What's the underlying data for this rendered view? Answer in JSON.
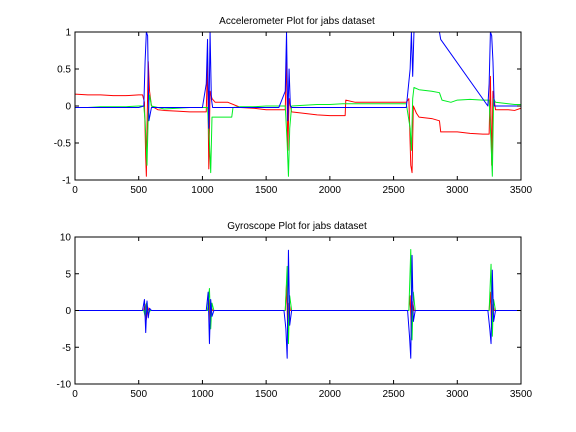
{
  "chart_data": [
    {
      "type": "line",
      "title": "Accelerometer Plot for jabs dataset",
      "xlabel": "",
      "ylabel": "",
      "xlim": [
        0,
        3500
      ],
      "ylim": [
        -1,
        1
      ],
      "xticks": [
        "0",
        "500",
        "1000",
        "1500",
        "2000",
        "2500",
        "3000",
        "3500"
      ],
      "yticks": [
        "1",
        "0.5",
        "0",
        "-0.5",
        "-1"
      ],
      "xtick_values": [
        0,
        500,
        1000,
        1500,
        2000,
        2500,
        3000,
        3500
      ],
      "ytick_values": [
        1,
        0.5,
        0,
        -0.5,
        -1
      ],
      "grid": false,
      "legend": "none",
      "series": [
        {
          "color": "#ff0000",
          "points": [
            [
              0,
              0.16
            ],
            [
              100,
              0.15
            ],
            [
              200,
              0.15
            ],
            [
              300,
              0.14
            ],
            [
              400,
              0.14
            ],
            [
              500,
              0.15
            ],
            [
              530,
              0.15
            ],
            [
              545,
              0.05
            ],
            [
              555,
              -0.7
            ],
            [
              560,
              -0.95
            ],
            [
              565,
              -0.3
            ],
            [
              575,
              0.6
            ],
            [
              585,
              0.2
            ],
            [
              600,
              0.0
            ],
            [
              650,
              -0.05
            ],
            [
              700,
              -0.06
            ],
            [
              800,
              -0.07
            ],
            [
              900,
              -0.08
            ],
            [
              1000,
              -0.08
            ],
            [
              1030,
              -0.08
            ],
            [
              1040,
              0.6
            ],
            [
              1050,
              -0.85
            ],
            [
              1060,
              0.2
            ],
            [
              1075,
              0.1
            ],
            [
              1100,
              0.05
            ],
            [
              1200,
              0.05
            ],
            [
              1300,
              -0.02
            ],
            [
              1400,
              -0.03
            ],
            [
              1500,
              -0.05
            ],
            [
              1600,
              -0.05
            ],
            [
              1650,
              -0.05
            ],
            [
              1660,
              0.7
            ],
            [
              1670,
              -0.6
            ],
            [
              1680,
              0.1
            ],
            [
              1700,
              -0.08
            ],
            [
              1800,
              -0.1
            ],
            [
              1900,
              -0.12
            ],
            [
              2000,
              -0.13
            ],
            [
              2100,
              -0.13
            ],
            [
              2120,
              -0.13
            ],
            [
              2125,
              0.08
            ],
            [
              2200,
              0.05
            ],
            [
              2300,
              0.05
            ],
            [
              2400,
              0.05
            ],
            [
              2500,
              0.05
            ],
            [
              2600,
              0.05
            ],
            [
              2620,
              0.1
            ],
            [
              2635,
              -0.8
            ],
            [
              2645,
              -0.9
            ],
            [
              2655,
              0.0
            ],
            [
              2680,
              -0.1
            ],
            [
              2700,
              -0.15
            ],
            [
              2800,
              -0.17
            ],
            [
              2860,
              -0.2
            ],
            [
              2870,
              -0.35
            ],
            [
              3000,
              -0.35
            ],
            [
              3100,
              -0.37
            ],
            [
              3200,
              -0.38
            ],
            [
              3250,
              -0.38
            ],
            [
              3260,
              0.4
            ],
            [
              3270,
              -0.8
            ],
            [
              3280,
              0.2
            ],
            [
              3300,
              -0.05
            ],
            [
              3400,
              -0.05
            ],
            [
              3450,
              -0.06
            ],
            [
              3500,
              -0.03
            ]
          ]
        },
        {
          "color": "#00ee22",
          "points": [
            [
              0,
              -0.02
            ],
            [
              100,
              -0.02
            ],
            [
              200,
              -0.01
            ],
            [
              300,
              -0.01
            ],
            [
              400,
              -0.01
            ],
            [
              500,
              0.0
            ],
            [
              540,
              0.0
            ],
            [
              550,
              -0.2
            ],
            [
              565,
              -0.8
            ],
            [
              575,
              -0.1
            ],
            [
              585,
              0.15
            ],
            [
              600,
              0.0
            ],
            [
              700,
              -0.04
            ],
            [
              800,
              -0.03
            ],
            [
              900,
              -0.02
            ],
            [
              1000,
              -0.02
            ],
            [
              1040,
              -0.02
            ],
            [
              1055,
              -0.5
            ],
            [
              1065,
              -0.9
            ],
            [
              1075,
              -0.15
            ],
            [
              1100,
              -0.15
            ],
            [
              1150,
              -0.15
            ],
            [
              1200,
              -0.15
            ],
            [
              1230,
              -0.15
            ],
            [
              1240,
              -0.02
            ],
            [
              1300,
              -0.01
            ],
            [
              1400,
              -0.01
            ],
            [
              1500,
              0.0
            ],
            [
              1600,
              0.0
            ],
            [
              1650,
              0.0
            ],
            [
              1665,
              -0.5
            ],
            [
              1675,
              -0.95
            ],
            [
              1685,
              -0.3
            ],
            [
              1700,
              0.0
            ],
            [
              1800,
              0.01
            ],
            [
              1900,
              0.02
            ],
            [
              2000,
              0.02
            ],
            [
              2100,
              0.03
            ],
            [
              2200,
              0.03
            ],
            [
              2300,
              0.03
            ],
            [
              2400,
              0.03
            ],
            [
              2500,
              0.03
            ],
            [
              2600,
              0.03
            ],
            [
              2630,
              -0.3
            ],
            [
              2640,
              -0.6
            ],
            [
              2650,
              0.1
            ],
            [
              2660,
              0.25
            ],
            [
              2700,
              0.22
            ],
            [
              2800,
              0.2
            ],
            [
              2860,
              0.18
            ],
            [
              2880,
              0.08
            ],
            [
              2950,
              0.05
            ],
            [
              3000,
              0.08
            ],
            [
              3100,
              0.09
            ],
            [
              3200,
              0.08
            ],
            [
              3250,
              0.08
            ],
            [
              3265,
              -0.5
            ],
            [
              3275,
              -0.95
            ],
            [
              3285,
              0.1
            ],
            [
              3300,
              0.05
            ],
            [
              3400,
              0.03
            ],
            [
              3450,
              0.02
            ],
            [
              3500,
              0.02
            ]
          ]
        },
        {
          "color": "#0000ff",
          "points": [
            [
              0,
              -0.02
            ],
            [
              500,
              -0.02
            ],
            [
              540,
              0.0
            ],
            [
              550,
              0.6
            ],
            [
              560,
              1.0
            ],
            [
              570,
              0.95
            ],
            [
              580,
              -0.2
            ],
            [
              600,
              -0.02
            ],
            [
              1000,
              -0.02
            ],
            [
              1030,
              0.3
            ],
            [
              1040,
              0.9
            ],
            [
              1050,
              -0.3
            ],
            [
              1060,
              1.0
            ],
            [
              1070,
              0.1
            ],
            [
              1080,
              -0.02
            ],
            [
              1600,
              -0.02
            ],
            [
              1650,
              0.2
            ],
            [
              1660,
              1.0
            ],
            [
              1670,
              -0.2
            ],
            [
              1680,
              0.5
            ],
            [
              1690,
              0.0
            ],
            [
              1700,
              -0.02
            ],
            [
              2600,
              -0.02
            ],
            [
              2630,
              0.5
            ],
            [
              2640,
              1.0
            ],
            [
              2650,
              0.4
            ],
            [
              2660,
              1.0
            ],
            [
              2700,
              1.0
            ],
            [
              2800,
              1.0
            ],
            [
              2860,
              1.0
            ],
            [
              2870,
              0.9
            ],
            [
              3240,
              0.0
            ],
            [
              3250,
              0.3
            ],
            [
              3260,
              1.0
            ],
            [
              3270,
              0.95
            ],
            [
              3280,
              0.6
            ],
            [
              3290,
              0.0
            ],
            [
              3300,
              0.0
            ],
            [
              3500,
              0.0
            ]
          ]
        }
      ]
    },
    {
      "type": "line",
      "title": "Gyroscope Plot for jabs dataset",
      "xlabel": "",
      "ylabel": "",
      "xlim": [
        0,
        3500
      ],
      "ylim": [
        -10,
        10
      ],
      "xticks": [
        "0",
        "500",
        "1000",
        "1500",
        "2000",
        "2500",
        "3000",
        "3500"
      ],
      "yticks": [
        "10",
        "5",
        "0",
        "-5",
        "-10"
      ],
      "xtick_values": [
        0,
        500,
        1000,
        1500,
        2000,
        2500,
        3000,
        3500
      ],
      "ytick_values": [
        10,
        5,
        0,
        -5,
        -10
      ],
      "grid": false,
      "legend": "none",
      "series": [
        {
          "color": "#ff0000",
          "points": [
            [
              0,
              0
            ],
            [
              540,
              0
            ],
            [
              550,
              0.8
            ],
            [
              560,
              -1.2
            ],
            [
              570,
              0.5
            ],
            [
              580,
              0
            ],
            [
              1040,
              0
            ],
            [
              1050,
              1.5
            ],
            [
              1060,
              -1.8
            ],
            [
              1070,
              0.4
            ],
            [
              1080,
              0
            ],
            [
              1650,
              0
            ],
            [
              1660,
              3.5
            ],
            [
              1670,
              -3.0
            ],
            [
              1680,
              1.0
            ],
            [
              1690,
              0
            ],
            [
              2620,
              0
            ],
            [
              2630,
              2.0
            ],
            [
              2640,
              -3.0
            ],
            [
              2650,
              1.2
            ],
            [
              2660,
              0
            ],
            [
              3250,
              0
            ],
            [
              3260,
              2.5
            ],
            [
              3270,
              -2.5
            ],
            [
              3280,
              0.8
            ],
            [
              3290,
              0
            ],
            [
              3500,
              0
            ]
          ]
        },
        {
          "color": "#00ee22",
          "points": [
            [
              0,
              0
            ],
            [
              540,
              0
            ],
            [
              550,
              -0.8
            ],
            [
              560,
              1.0
            ],
            [
              575,
              -0.5
            ],
            [
              590,
              0
            ],
            [
              1040,
              0
            ],
            [
              1055,
              3.0
            ],
            [
              1065,
              -2.5
            ],
            [
              1075,
              1.0
            ],
            [
              1090,
              0
            ],
            [
              1650,
              0
            ],
            [
              1665,
              6.0
            ],
            [
              1675,
              -4.5
            ],
            [
              1685,
              2.0
            ],
            [
              1700,
              0
            ],
            [
              2620,
              0
            ],
            [
              2635,
              8.3
            ],
            [
              2645,
              -4.0
            ],
            [
              2655,
              2.5
            ],
            [
              2670,
              0
            ],
            [
              3250,
              0
            ],
            [
              3265,
              6.3
            ],
            [
              3275,
              -3.5
            ],
            [
              3285,
              1.5
            ],
            [
              3300,
              0
            ],
            [
              3500,
              0
            ]
          ]
        },
        {
          "color": "#0000ff",
          "points": [
            [
              0,
              0
            ],
            [
              530,
              0
            ],
            [
              545,
              1.5
            ],
            [
              555,
              -3.0
            ],
            [
              565,
              1.3
            ],
            [
              575,
              -1.0
            ],
            [
              585,
              0.3
            ],
            [
              600,
              0
            ],
            [
              1030,
              0
            ],
            [
              1045,
              2.5
            ],
            [
              1055,
              -4.5
            ],
            [
              1065,
              1.5
            ],
            [
              1075,
              -0.8
            ],
            [
              1090,
              0
            ],
            [
              1640,
              0
            ],
            [
              1655,
              -2.5
            ],
            [
              1665,
              -6.5
            ],
            [
              1675,
              8.2
            ],
            [
              1685,
              -2.0
            ],
            [
              1700,
              0
            ],
            [
              2610,
              0
            ],
            [
              2625,
              -3.5
            ],
            [
              2635,
              -6.5
            ],
            [
              2645,
              7.5
            ],
            [
              2655,
              -1.5
            ],
            [
              2670,
              0
            ],
            [
              3240,
              0
            ],
            [
              3255,
              -2.5
            ],
            [
              3265,
              -4.5
            ],
            [
              3275,
              5.5
            ],
            [
              3285,
              -1.5
            ],
            [
              3300,
              0
            ],
            [
              3500,
              0
            ]
          ]
        }
      ]
    }
  ]
}
